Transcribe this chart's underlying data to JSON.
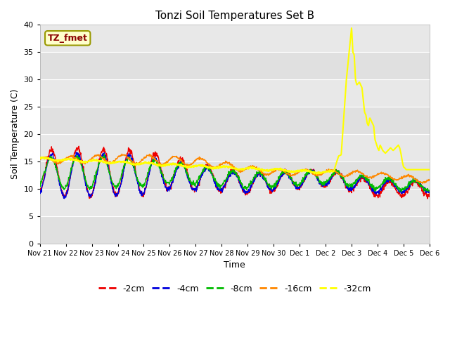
{
  "title": "Tonzi Soil Temperatures Set B",
  "xlabel": "Time",
  "ylabel": "Soil Temperature (C)",
  "ylim": [
    0,
    40
  ],
  "yticks": [
    0,
    5,
    10,
    15,
    20,
    25,
    30,
    35,
    40
  ],
  "annotation_label": "TZ_fmet",
  "annotation_color": "#8b0000",
  "annotation_bg": "#ffffcc",
  "annotation_border": "#999900",
  "series_colors": {
    "-2cm": "#ee0000",
    "-4cm": "#0000dd",
    "-8cm": "#00bb00",
    "-16cm": "#ff8800",
    "-32cm": "#ffff00"
  },
  "legend_labels": [
    "-2cm",
    "-4cm",
    "-8cm",
    "-16cm",
    "-32cm"
  ],
  "fig_bg": "#ffffff",
  "plot_bg": "#e8e8e8",
  "grid_color": "#ffffff",
  "tick_fontsize": 7,
  "title_fontsize": 11,
  "axis_label_fontsize": 9,
  "legend_fontsize": 9,
  "tick_labels": [
    "Nov 21",
    "Nov 22",
    "Nov 23",
    "Nov 24",
    "Nov 25",
    "Nov 26",
    "Nov 27",
    "Nov 28",
    "Nov 29",
    "Nov 30",
    "Dec 1",
    "Dec 2",
    "Dec 3",
    "Dec 4",
    "Dec 5",
    "Dec 6"
  ]
}
